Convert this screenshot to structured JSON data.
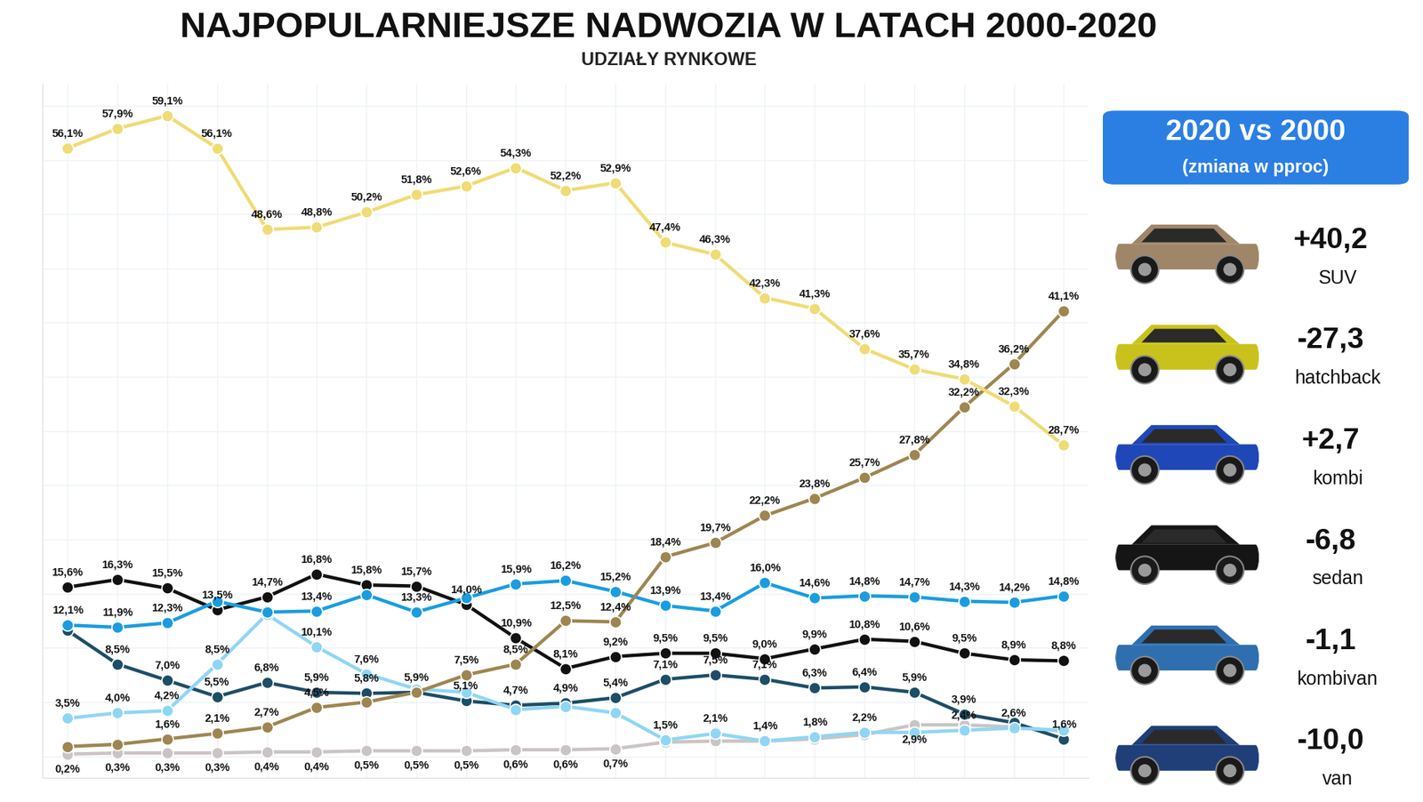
{
  "chart_data": {
    "type": "line",
    "title": "NAJPOPULARNIEJSZE NADWOZIA W LATACH 2000-2020",
    "subtitle": "UDZIAŁY RYNKOWE",
    "categories": [
      null,
      null,
      null,
      null,
      null,
      null,
      null,
      null,
      null,
      null,
      null,
      null,
      null,
      null,
      null,
      null,
      null,
      null,
      null,
      null,
      null
    ],
    "ylim": [
      -2,
      62
    ],
    "yticks": [
      0,
      5,
      10,
      15,
      20,
      25,
      30,
      35,
      40,
      45,
      50,
      55,
      60
    ],
    "grid": true,
    "tick_labels": false,
    "data_labels": true,
    "marker": "o",
    "series": [
      {
        "name": "hatchback",
        "color": "#efdc74",
        "values": [
          56.1,
          57.9,
          59.1,
          56.1,
          48.6,
          48.8,
          50.2,
          51.8,
          52.6,
          54.3,
          52.2,
          52.9,
          47.4,
          46.3,
          42.3,
          41.3,
          37.6,
          35.7,
          34.8,
          32.3,
          28.7
        ],
        "value_labels": [
          "56,1%",
          "57,9%",
          "59,1%",
          "56,1%",
          "48,6%",
          "48,8%",
          "50,2%",
          "51,8%",
          "52,6%",
          "54,3%",
          "52,2%",
          "52,9%",
          "47,4%",
          "46,3%",
          "42,3%",
          "41,3%",
          "37,6%",
          "35,7%",
          "34,8%",
          "32,3%",
          "28,7%"
        ]
      },
      {
        "name": "SUV",
        "color": "#9e8650",
        "values": [
          0.9,
          1.1,
          1.6,
          2.1,
          2.7,
          4.5,
          5.0,
          5.9,
          7.5,
          8.5,
          12.5,
          12.4,
          18.4,
          19.7,
          22.2,
          23.8,
          25.7,
          27.8,
          32.2,
          36.2,
          41.1
        ],
        "value_labels": [
          null,
          null,
          "1,6%",
          "2,1%",
          "2,7%",
          "4,5%",
          null,
          null,
          "7,5%",
          "8,5%",
          "12,5%",
          "12,4%",
          "18,4%",
          "19,7%",
          "22,2%",
          "23,8%",
          "25,7%",
          "27,8%",
          "32,2%",
          "36,2%",
          "41,1%"
        ]
      },
      {
        "name": "kombi",
        "color": "#1a9de0",
        "values": [
          12.1,
          11.9,
          12.3,
          14.3,
          13.3,
          13.4,
          14.9,
          13.3,
          14.6,
          15.9,
          16.2,
          15.2,
          13.9,
          13.4,
          16.0,
          14.6,
          14.8,
          14.7,
          14.3,
          14.2,
          14.8
        ],
        "value_labels": [
          "12,1%",
          "11,9%",
          "12,3%",
          null,
          null,
          "13,4%",
          null,
          "13,3%",
          null,
          "15,9%",
          "16,2%",
          "15,2%",
          "13,9%",
          "13,4%",
          "16,0%",
          "14,6%",
          "14,8%",
          "14,7%",
          "14,3%",
          "14,2%",
          "14,8%"
        ]
      },
      {
        "name": "sedan",
        "color": "#111111",
        "values": [
          15.6,
          16.3,
          15.5,
          13.5,
          14.7,
          16.8,
          15.8,
          15.7,
          14.0,
          10.9,
          8.1,
          9.2,
          9.5,
          9.5,
          9.0,
          9.9,
          10.8,
          10.6,
          9.5,
          8.9,
          8.8
        ],
        "value_labels": [
          "15,6%",
          "16,3%",
          "15,5%",
          "13,5%",
          "14,7%",
          "16,8%",
          "15,8%",
          "15,7%",
          "14,0%",
          "10,9%",
          "8,1%",
          "9,2%",
          "9,5%",
          "9,5%",
          "9,0%",
          "9,9%",
          "10,8%",
          "10,6%",
          "9,5%",
          "8,9%",
          "8,8%"
        ]
      },
      {
        "name": "kombivan",
        "color": "#8fd6f5",
        "values": [
          3.5,
          4.0,
          4.2,
          8.5,
          13.1,
          10.1,
          7.6,
          6.2,
          5.9,
          4.3,
          4.6,
          4.0,
          1.5,
          2.1,
          1.4,
          1.8,
          2.2,
          2.2,
          2.4,
          2.6,
          2.4
        ],
        "value_labels": [
          "3,5%",
          "4,0%",
          "4,2%",
          "8,5%",
          null,
          "10,1%",
          "7,6%",
          null,
          null,
          null,
          null,
          null,
          "1,5%",
          "2,1%",
          "1,4%",
          "1,8%",
          "2,2%",
          null,
          "2,4%",
          "2,6%",
          null
        ]
      },
      {
        "name": "van",
        "color": "#1d4e66",
        "values": [
          11.6,
          8.5,
          7.0,
          5.5,
          6.8,
          5.9,
          5.8,
          5.9,
          5.1,
          4.7,
          4.9,
          5.4,
          7.1,
          7.5,
          7.1,
          6.3,
          6.4,
          5.9,
          3.9,
          3.1,
          1.6
        ],
        "value_labels": [
          null,
          "8,5%",
          "7,0%",
          "5,5%",
          "6,8%",
          "5,9%",
          "5,8%",
          "5,9%",
          "5,1%",
          "4,7%",
          "4,9%",
          "5,4%",
          "7,1%",
          "7,5%",
          "7,1%",
          "6,3%",
          "6,4%",
          "5,9%",
          "3,9%",
          null,
          "1,6%"
        ]
      },
      {
        "color": "#cbc4c4",
        "values": [
          0.2,
          0.3,
          0.3,
          0.3,
          0.4,
          0.4,
          0.5,
          0.5,
          0.5,
          0.6,
          0.6,
          0.7,
          1.3,
          1.4,
          1.4,
          1.6,
          2.0,
          2.9,
          2.9,
          2.7,
          2.3
        ],
        "value_labels": [
          "0,2%",
          "0,3%",
          "0,3%",
          "0,3%",
          "0,4%",
          "0,4%",
          "0,5%",
          "0,5%",
          "0,5%",
          "0,6%",
          "0,6%",
          "0,7%",
          null,
          null,
          null,
          null,
          null,
          "2,9%",
          null,
          null,
          null
        ]
      }
    ]
  },
  "comparison": {
    "title": "2020 vs 2000",
    "subtitle": "(zmiana w pproc)",
    "items": [
      {
        "change": "+40,2",
        "name": "SUV",
        "color": "#a08668"
      },
      {
        "change": "-27,3",
        "name": "hatchback",
        "color": "#c9c21c"
      },
      {
        "change": "+2,7",
        "name": "kombi",
        "color": "#1f47b8"
      },
      {
        "change": "-6,8",
        "name": "sedan",
        "color": "#151515"
      },
      {
        "change": "-1,1",
        "name": "kombivan",
        "color": "#2f6fb0"
      },
      {
        "change": "-10,0",
        "name": "van",
        "color": "#203e78"
      }
    ]
  }
}
